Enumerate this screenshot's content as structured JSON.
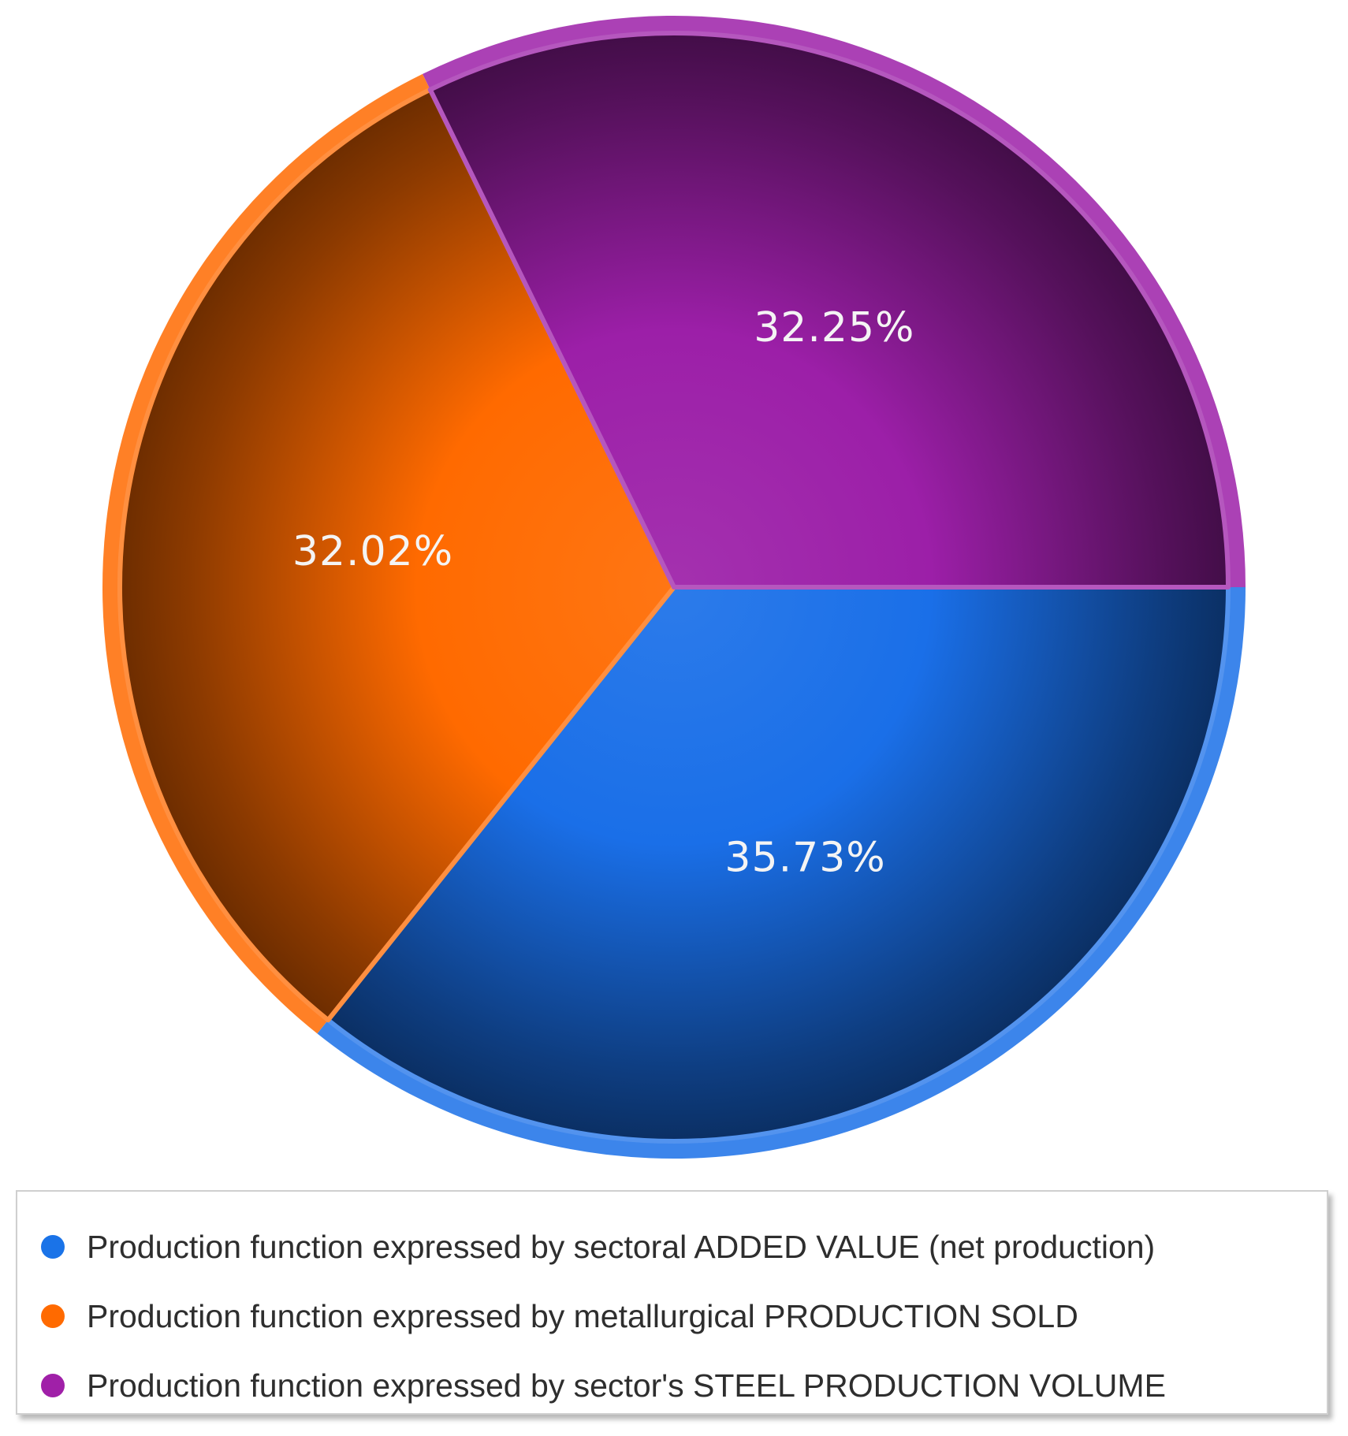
{
  "chart_data": {
    "type": "pie",
    "series": [
      {
        "name": "Production function expressed by sectoral ADDED VALUE (net production)",
        "value": 35.73,
        "label": "35.73%",
        "color": "#1a6fe8"
      },
      {
        "name": "Production function expressed by metallurgical PRODUCTION SOLD",
        "value": 32.02,
        "label": "32.02%",
        "color": "#ff6a00"
      },
      {
        "name": "Production function expressed by sector's STEEL PRODUCTION VOLUME",
        "value": 32.25,
        "label": "32.25%",
        "color": "#9c1fa8"
      }
    ],
    "legend_placement": "bottom"
  },
  "legend": {
    "items": [
      {
        "label": "Production function expressed by sectoral ADDED VALUE (net production)",
        "color": "#1a73e8"
      },
      {
        "label": "Production function expressed by metallurgical PRODUCTION SOLD",
        "color": "#ff6a00"
      },
      {
        "label": "Production function expressed by sector's STEEL PRODUCTION VOLUME",
        "color": "#a020a8"
      }
    ]
  }
}
